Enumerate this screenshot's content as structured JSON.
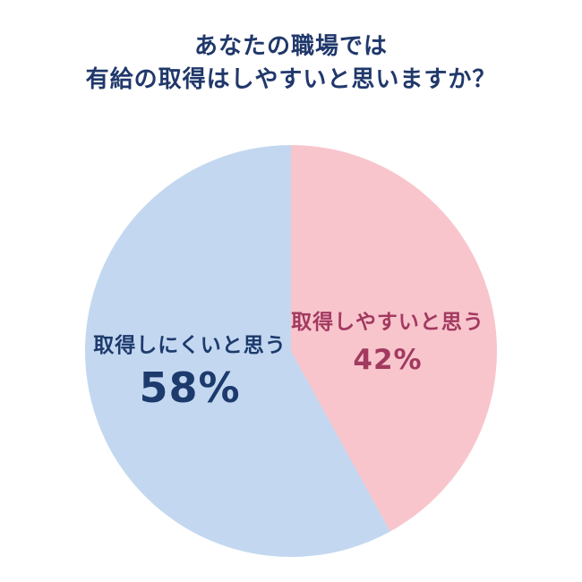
{
  "title": {
    "line1": "あなたの職場では",
    "line2": "有給の取得はしやすいと思いますか？",
    "color": "#20386b"
  },
  "chart_data": {
    "type": "pie",
    "title": "あなたの職場では 有給の取得はしやすいと思いますか？",
    "direction": "clockwise",
    "start_angle": "top",
    "legend_position": "none",
    "slices": [
      {
        "label": "取得しやすいと思う",
        "value": 42,
        "pct_label": "42%",
        "color": "#f9c5cd",
        "label_color": "#a23a60"
      },
      {
        "label": "取得しにくいと思う",
        "value": 58,
        "pct_label": "58%",
        "color": "#c3d8f0",
        "label_color": "#1d3a6d"
      }
    ]
  }
}
